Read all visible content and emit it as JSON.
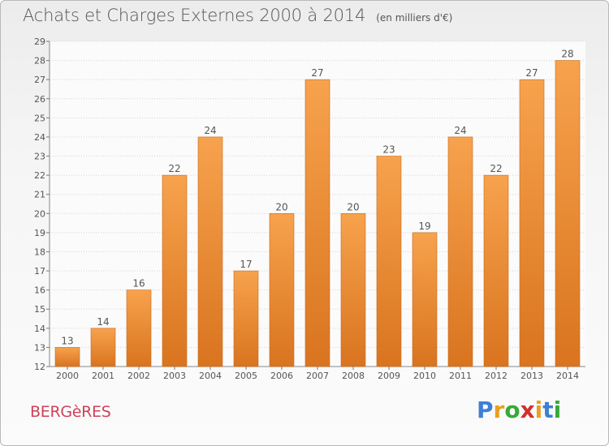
{
  "header": {
    "title": "Achats et Charges Externes 2000 à 2014",
    "subtitle": "(en milliers d'€)"
  },
  "footer": {
    "commune": "BERGèRES",
    "brand_letters": [
      "P",
      "r",
      "o",
      "x",
      "i",
      "t",
      "i"
    ],
    "brand_colors": [
      "#3d7fd6",
      "#e8a020",
      "#38a83a",
      "#d03030",
      "#e8a020",
      "#3d7fd6",
      "#38a83a"
    ]
  },
  "colors": {
    "bar_top": "#f7a24d",
    "bar_bottom": "#d9741f",
    "grid": "#d4d4d4",
    "axis_text": "#555555"
  },
  "chart_data": {
    "type": "bar",
    "title": "Achats et Charges Externes 2000 à 2014",
    "subtitle": "(en milliers d'€)",
    "xlabel": "",
    "ylabel": "",
    "categories": [
      "2000",
      "2001",
      "2002",
      "2003",
      "2004",
      "2005",
      "2006",
      "2007",
      "2008",
      "2009",
      "2010",
      "2011",
      "2012",
      "2013",
      "2014"
    ],
    "values": [
      13,
      14,
      16,
      22,
      24,
      17,
      20,
      27,
      20,
      23,
      19,
      24,
      22,
      27,
      28
    ],
    "ylim": [
      12,
      29
    ],
    "yticks": [
      12,
      13,
      14,
      15,
      16,
      17,
      18,
      19,
      20,
      21,
      22,
      23,
      24,
      25,
      26,
      27,
      28,
      29
    ],
    "grid": true,
    "legend": "none",
    "data_labels": true
  }
}
